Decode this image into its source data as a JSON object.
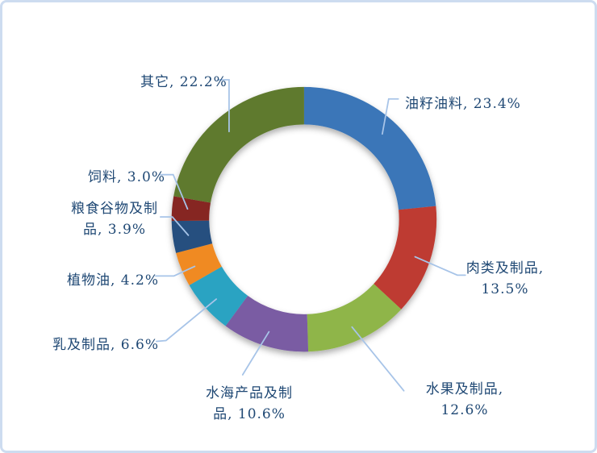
{
  "chart_data": {
    "type": "pie",
    "variant": "donut",
    "title": "",
    "legend_position": "none",
    "categories": [
      "油籽油料",
      "肉类及制品",
      "水果及制品",
      "水海产品及制品",
      "乳及制品",
      "植物油",
      "粮食谷物及制品",
      "饲料",
      "其它"
    ],
    "values": [
      23.4,
      13.5,
      12.6,
      10.6,
      6.6,
      4.2,
      3.9,
      3.0,
      22.2
    ],
    "unit": "%",
    "direction": "clockwise",
    "start_angle_deg": 0,
    "hole_ratio": 0.72,
    "colors": [
      "#3A76B8",
      "#BE3A32",
      "#8FB54A",
      "#7A5BA3",
      "#2AA3C2",
      "#F08A21",
      "#25507F",
      "#862622",
      "#5E7A2F"
    ],
    "labels": [
      {
        "lines": [
          "油籽油料, 23.4%"
        ]
      },
      {
        "lines": [
          "肉类及制品,",
          "13.5%"
        ]
      },
      {
        "lines": [
          "水果及制品,",
          "12.6%"
        ]
      },
      {
        "lines": [
          "水海产品及制",
          "品, 10.6%"
        ]
      },
      {
        "lines": [
          "乳及制品, 6.6%"
        ]
      },
      {
        "lines": [
          "植物油, 4.2%"
        ]
      },
      {
        "lines": [
          "粮食谷物及制",
          "品, 3.9%"
        ]
      },
      {
        "lines": [
          "饲料, 3.0%"
        ]
      },
      {
        "lines": [
          "其它, 22.2%"
        ]
      }
    ],
    "styles": {
      "label_color": "#1F4874",
      "leader_line_color": "#A7C4E8",
      "frame_border_color": "#CDDCF0",
      "background": "#FFFFFF"
    }
  }
}
